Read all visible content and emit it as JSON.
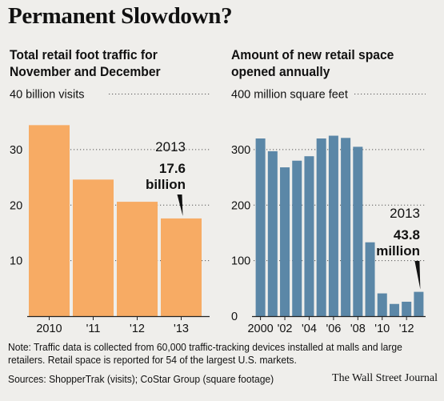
{
  "title": "Permanent Slowdown?",
  "note": "Note: Traffic data is collected from 60,000 traffic-tracking devices installed at malls and large",
  "note2": "retailers. Retail space is reported for 54 of the largest U.S. markets.",
  "sources": "Sources: ShopperTrak (visits); CoStar Group (square footage)",
  "credit": "The Wall Street Journal",
  "colors": {
    "left_bars": "#f7ab64",
    "right_bars": "#5b87a7",
    "background": "#efeeeb"
  },
  "chart_data": [
    {
      "type": "bar",
      "title": "Total retail foot traffic for November and December",
      "title_lines": [
        "Total retail foot traffic for",
        "November and December"
      ],
      "top_label": "40 billion visits",
      "categories": [
        "2010",
        "'11",
        "'12",
        "'13"
      ],
      "values": [
        34.4,
        24.6,
        20.6,
        17.6
      ],
      "ylim": [
        0,
        40
      ],
      "yticks": [
        10,
        20,
        30
      ],
      "grid": true,
      "annotation": {
        "year": "2013",
        "value": "17.6",
        "unit": "billion"
      }
    },
    {
      "type": "bar",
      "title": "Amount of new retail space opened annually",
      "title_lines": [
        "Amount of new retail space",
        "opened annually"
      ],
      "top_label": "400 million square feet",
      "categories": [
        "2000",
        "2001",
        "2002",
        "2003",
        "2004",
        "2005",
        "2006",
        "2007",
        "2008",
        "2009",
        "2010",
        "2011",
        "2012",
        "2013"
      ],
      "tick_labels": [
        "2000",
        "'02",
        "'04",
        "'06",
        "'08",
        "'10",
        "'12"
      ],
      "values": [
        320,
        297,
        268,
        280,
        288,
        320,
        325,
        321,
        305,
        133,
        41,
        22,
        26,
        43.8
      ],
      "ylim": [
        0,
        400
      ],
      "yticks": [
        0,
        100,
        200,
        300
      ],
      "grid": true,
      "annotation": {
        "year": "2013",
        "value": "43.8",
        "unit": "million"
      }
    }
  ]
}
